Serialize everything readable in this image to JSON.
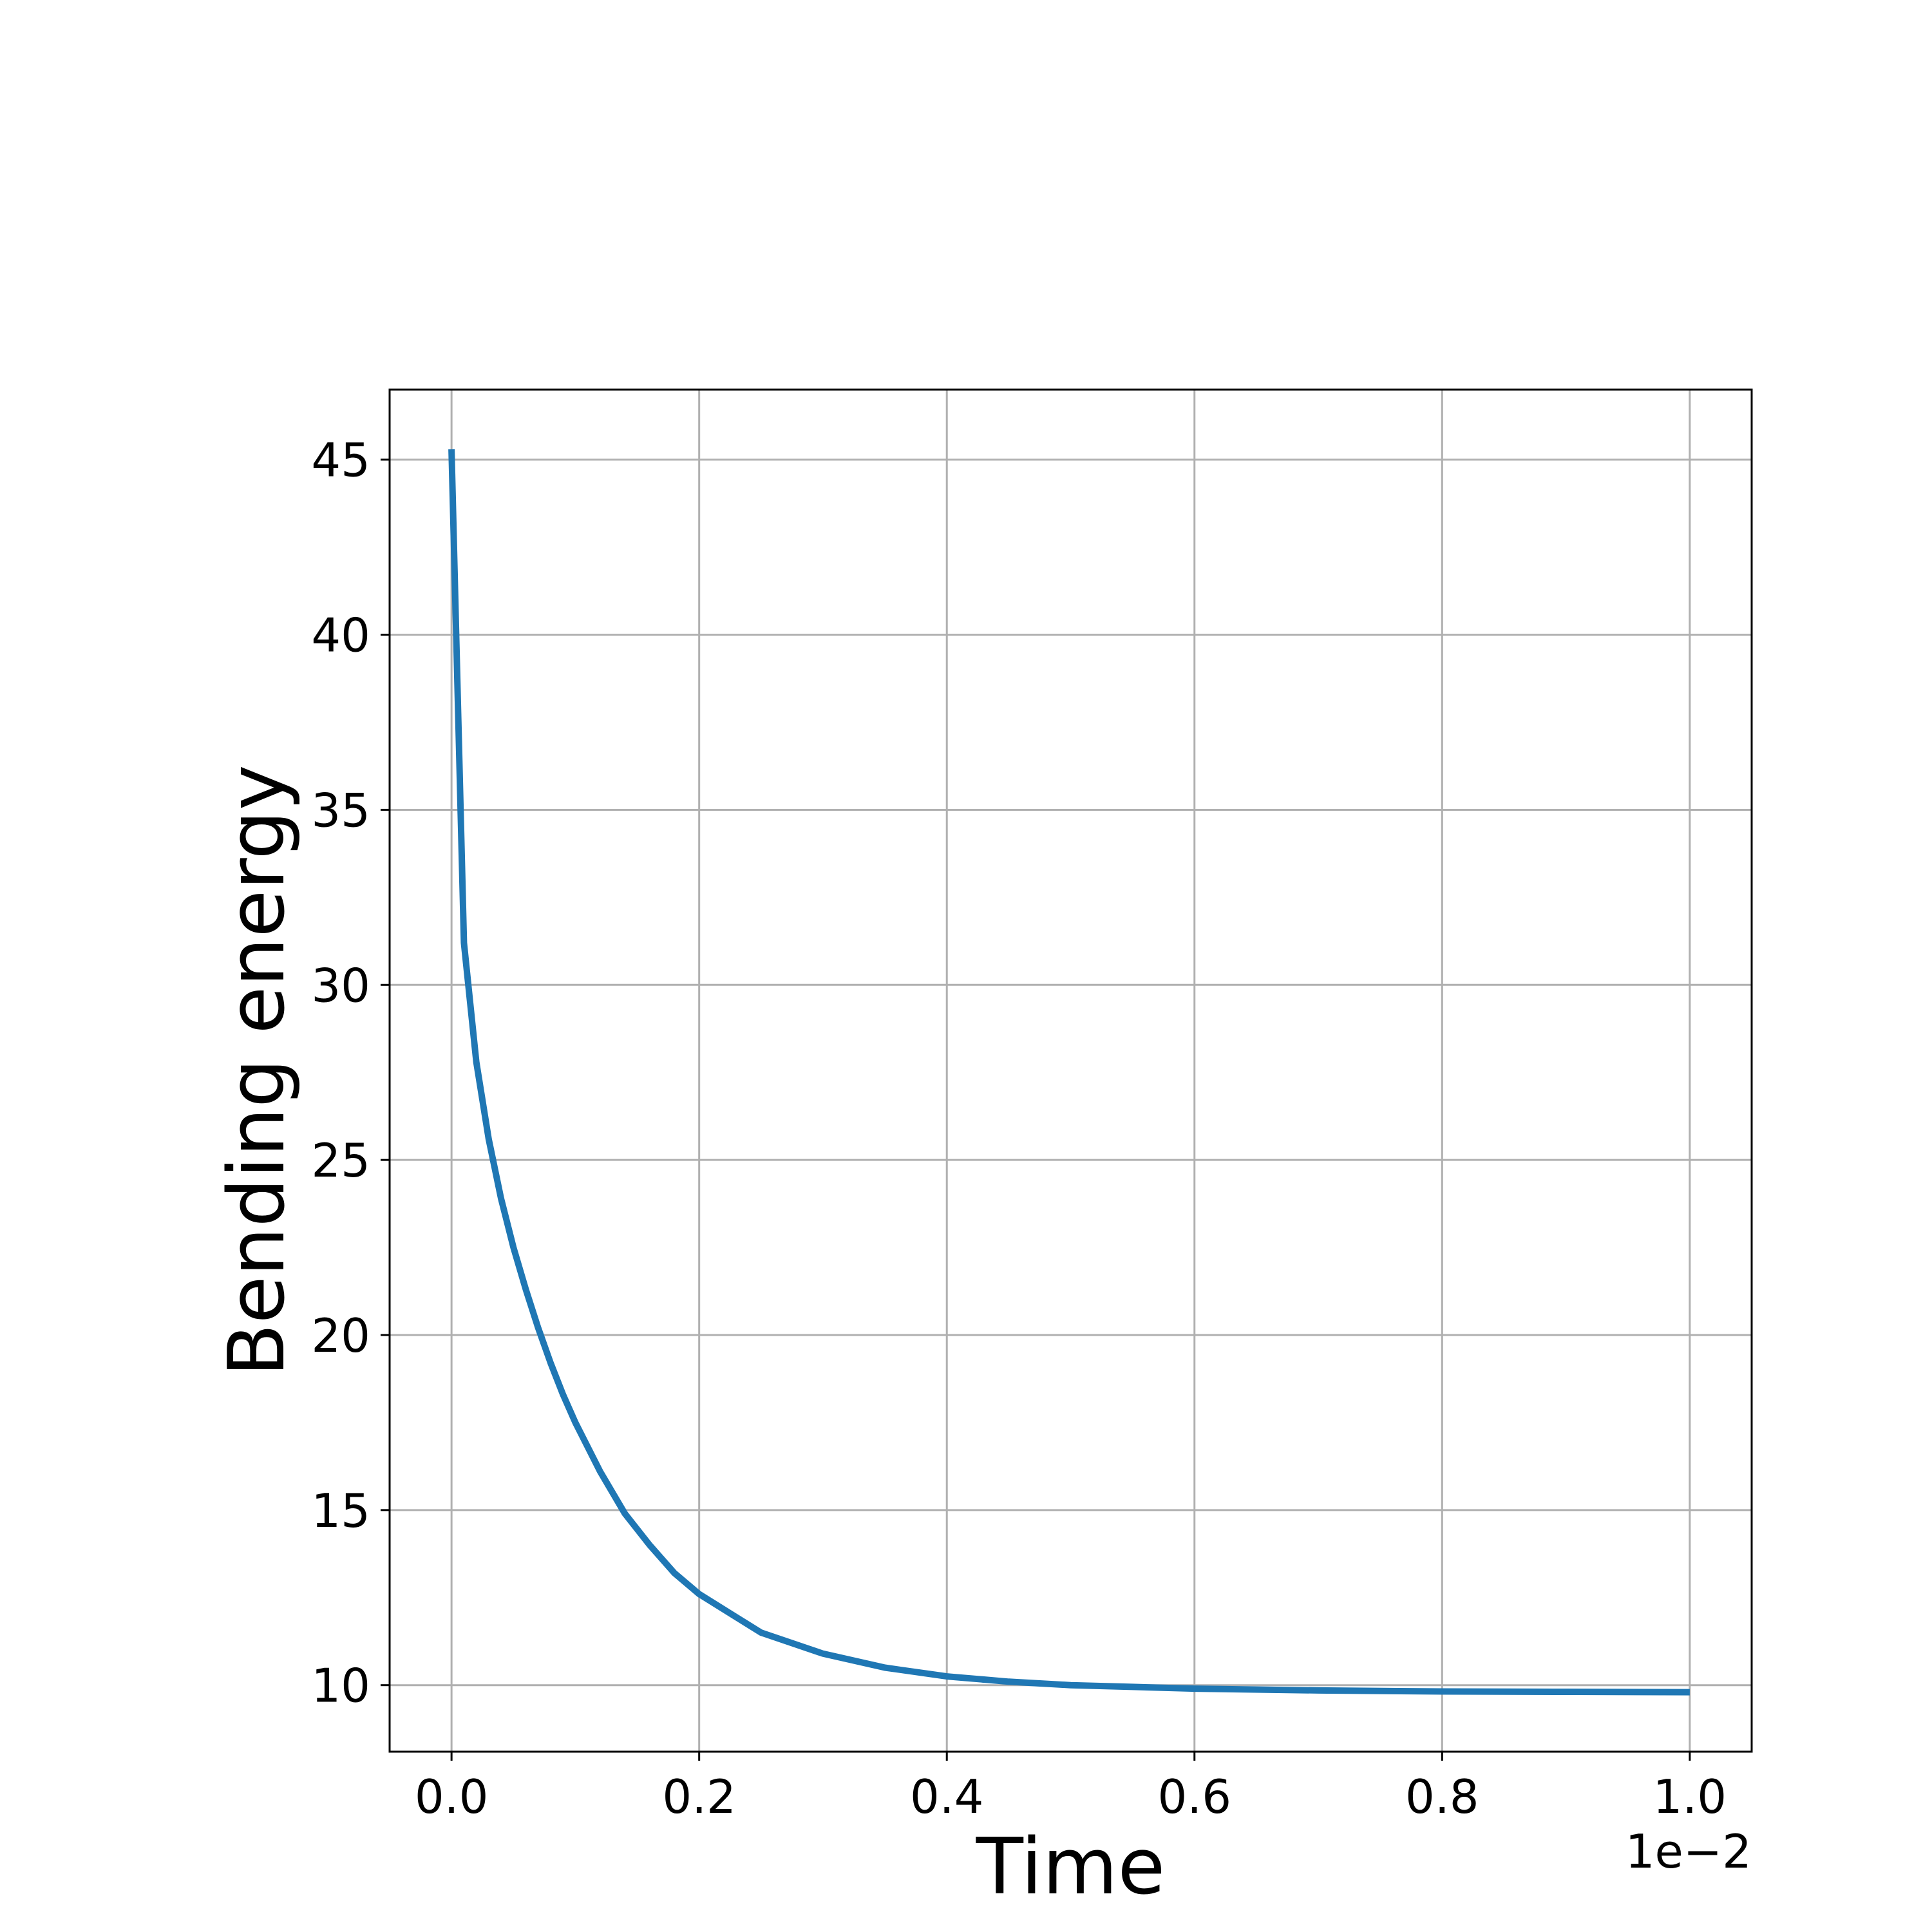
{
  "chart_data": {
    "type": "line",
    "xlabel": "Time",
    "ylabel": "Bending energy",
    "x_offset_label": "1e−2",
    "xlim": [
      -0.05,
      1.05
    ],
    "ylim": [
      8.1,
      47.0
    ],
    "x_ticks": [
      0.0,
      0.2,
      0.4,
      0.6,
      0.8,
      1.0
    ],
    "x_tick_labels": [
      "0.0",
      "0.2",
      "0.4",
      "0.6",
      "0.8",
      "1.0"
    ],
    "y_ticks": [
      10,
      15,
      20,
      25,
      30,
      35,
      40,
      45
    ],
    "y_tick_labels": [
      "10",
      "15",
      "20",
      "25",
      "30",
      "35",
      "40",
      "45"
    ],
    "grid": true,
    "colors": {
      "line": "#1f77b4",
      "grid": "#b0b0b0",
      "frame": "#000000"
    },
    "series": [
      {
        "x": [
          0.0,
          0.01,
          0.02,
          0.03,
          0.04,
          0.05,
          0.06,
          0.07,
          0.08,
          0.09,
          0.1,
          0.12,
          0.14,
          0.16,
          0.18,
          0.2,
          0.25,
          0.3,
          0.35,
          0.4,
          0.45,
          0.5,
          0.55,
          0.6,
          0.7,
          0.8,
          0.9,
          1.0
        ],
        "y": [
          45.3,
          31.2,
          27.8,
          25.6,
          23.9,
          22.5,
          21.3,
          20.2,
          19.2,
          18.3,
          17.5,
          16.1,
          14.9,
          14.0,
          13.2,
          12.6,
          11.5,
          10.9,
          10.5,
          10.25,
          10.1,
          10.0,
          9.95,
          9.9,
          9.85,
          9.82,
          9.81,
          9.8
        ]
      }
    ]
  }
}
